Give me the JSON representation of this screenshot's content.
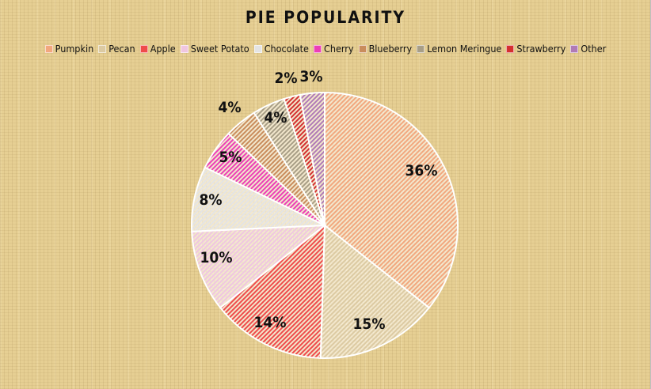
{
  "chart_data": {
    "type": "pie",
    "title": "PIE POPULARITY",
    "legend_position": "top",
    "slices": [
      {
        "name": "Pumpkin",
        "value": 36,
        "label": "36%",
        "color": "#f2a77e"
      },
      {
        "name": "Pecan",
        "value": 15,
        "label": "15%",
        "color": "#dccaa2"
      },
      {
        "name": "Apple",
        "value": 14,
        "label": "14%",
        "color": "#ef4b4b"
      },
      {
        "name": "Sweet Potato",
        "value": 10,
        "label": "10%",
        "color": "#f0c6e0"
      },
      {
        "name": "Chocolate",
        "value": 8,
        "label": "8%",
        "color": "#e4e4e4"
      },
      {
        "name": "Cherry",
        "value": 5,
        "label": "5%",
        "color": "#ec3fb7"
      },
      {
        "name": "Blueberry",
        "value": 4,
        "label": "4%",
        "color": "#c98c5c"
      },
      {
        "name": "Lemon Meringue",
        "value": 4,
        "label": "4%",
        "color": "#a89e86"
      },
      {
        "name": "Strawberry",
        "value": 2,
        "label": "2%",
        "color": "#d43030"
      },
      {
        "name": "Other",
        "value": 3,
        "label": "3%",
        "color": "#b07ab6"
      }
    ]
  }
}
